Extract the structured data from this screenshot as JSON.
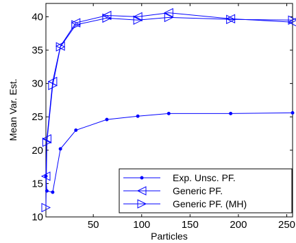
{
  "chart_data": {
    "type": "line",
    "title": "",
    "xlabel": "Particles",
    "ylabel": "Mean Var. Est.",
    "xlim": [
      1,
      256
    ],
    "ylim": [
      10,
      42
    ],
    "xticks": [
      50,
      100,
      150,
      200,
      250
    ],
    "yticks": [
      10,
      15,
      20,
      25,
      30,
      35,
      40
    ],
    "grid": false,
    "legend_position": "bottom-right",
    "line_color": "#0000ff",
    "series": [
      {
        "name": "Exp. Unsc. PF.",
        "marker": "dot",
        "points": [
          [
            1,
            16.1
          ],
          [
            2,
            13.9
          ],
          [
            8,
            13.7
          ],
          [
            16,
            20.2
          ],
          [
            32,
            23.0
          ],
          [
            64,
            24.6
          ],
          [
            96,
            25.1
          ],
          [
            128,
            25.5
          ],
          [
            192,
            25.5
          ],
          [
            256,
            25.6
          ]
        ]
      },
      {
        "name": "Generic PF.",
        "marker": "triangle-left",
        "points": [
          [
            1,
            16.1
          ],
          [
            2,
            21.7
          ],
          [
            8,
            30.3
          ],
          [
            16,
            35.6
          ],
          [
            32,
            39.1
          ],
          [
            64,
            40.2
          ],
          [
            96,
            40.0
          ],
          [
            128,
            40.6
          ],
          [
            192,
            39.7
          ],
          [
            256,
            39.2
          ]
        ]
      },
      {
        "name": "Generic PF. (MH)",
        "marker": "triangle-right",
        "points": [
          [
            1,
            11.4
          ],
          [
            2,
            21.2
          ],
          [
            8,
            29.7
          ],
          [
            16,
            35.5
          ],
          [
            32,
            38.8
          ],
          [
            64,
            39.8
          ],
          [
            96,
            39.5
          ],
          [
            128,
            39.9
          ],
          [
            192,
            39.6
          ],
          [
            256,
            39.5
          ]
        ]
      }
    ]
  }
}
